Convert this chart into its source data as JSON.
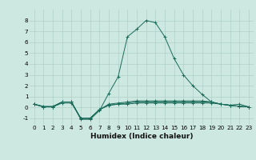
{
  "xlabel": "Humidex (Indice chaleur)",
  "background_color": "#cde8e0",
  "grid_color": "#aed0c8",
  "line_color": "#1a6b5a",
  "xlim": [
    -0.5,
    23.5
  ],
  "ylim": [
    -1.6,
    9.0
  ],
  "yticks": [
    -1,
    0,
    1,
    2,
    3,
    4,
    5,
    6,
    7,
    8
  ],
  "xticks": [
    0,
    1,
    2,
    3,
    4,
    5,
    6,
    7,
    8,
    9,
    10,
    11,
    12,
    13,
    14,
    15,
    16,
    17,
    18,
    19,
    20,
    21,
    22,
    23
  ],
  "series": [
    [
      0.3,
      0.1,
      0.1,
      0.5,
      0.5,
      -1.0,
      -1.0,
      -0.2,
      0.2,
      0.3,
      0.4,
      0.5,
      0.5,
      0.5,
      0.5,
      0.5,
      0.5,
      0.5,
      0.5,
      0.5,
      0.3,
      0.2,
      0.1,
      0.05
    ],
    [
      0.3,
      0.05,
      0.05,
      0.5,
      0.5,
      -1.1,
      -1.1,
      -0.3,
      1.3,
      2.8,
      6.5,
      7.2,
      8.0,
      7.8,
      6.5,
      4.5,
      3.0,
      2.0,
      1.2,
      0.5,
      0.3,
      0.2,
      0.3,
      0.05
    ],
    [
      0.3,
      0.05,
      0.05,
      0.5,
      0.5,
      -1.0,
      -1.0,
      -0.2,
      0.3,
      0.4,
      0.5,
      0.6,
      0.6,
      0.6,
      0.6,
      0.6,
      0.6,
      0.6,
      0.6,
      0.5,
      0.3,
      0.2,
      0.1,
      0.05
    ],
    [
      0.3,
      0.05,
      0.05,
      0.4,
      0.4,
      -1.0,
      -1.0,
      -0.2,
      0.2,
      0.3,
      0.3,
      0.4,
      0.4,
      0.4,
      0.4,
      0.4,
      0.4,
      0.4,
      0.4,
      0.4,
      0.3,
      0.2,
      0.1,
      0.05
    ]
  ],
  "xlabel_fontsize": 6.5,
  "tick_fontsize": 5.2
}
